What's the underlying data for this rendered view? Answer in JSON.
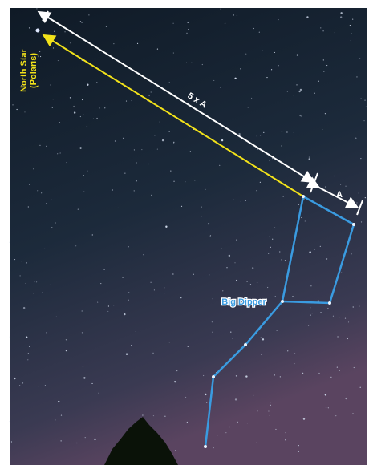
{
  "labels": {
    "north_star": "North Star",
    "polaris": "(Polaris)",
    "distance": "5 x A",
    "pointer": "A",
    "constellation": "Big Dipper"
  }
}
